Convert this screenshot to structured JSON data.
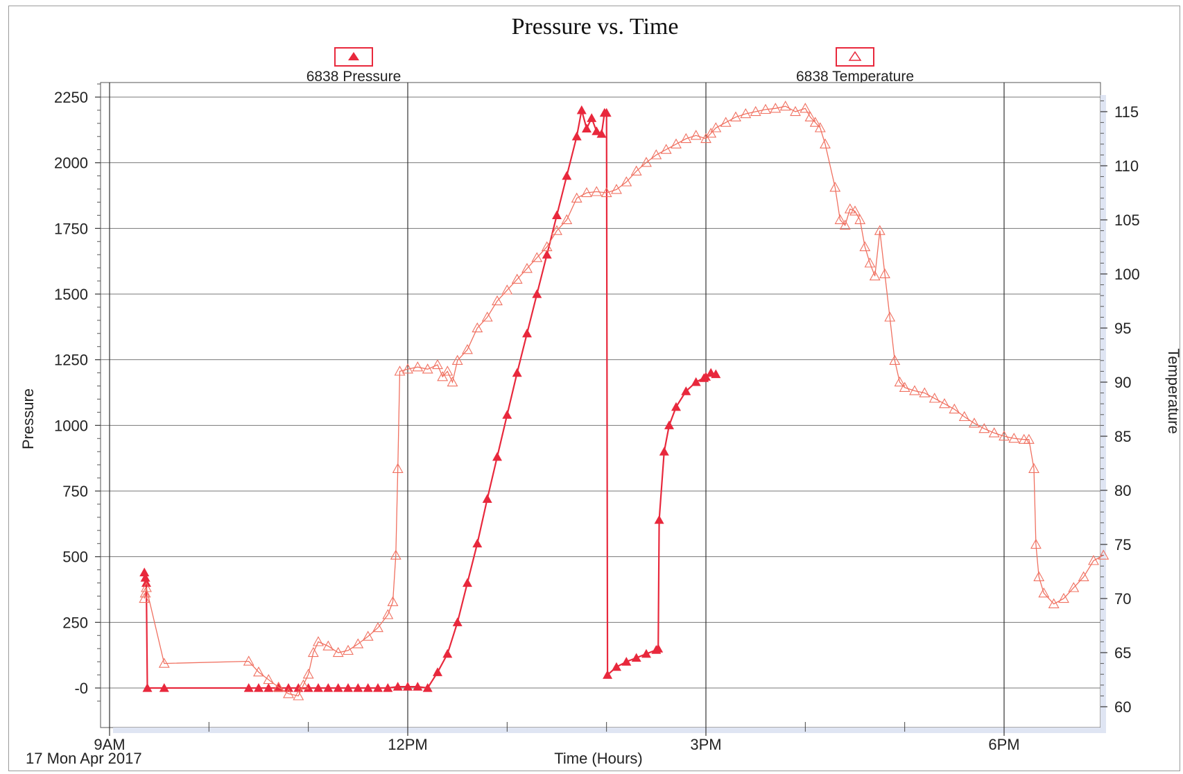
{
  "chart_data": {
    "type": "line",
    "title": "Pressure vs. Time",
    "xlabel": "Time (Hours)",
    "date_label": "17 Mon Apr 2017",
    "x_unit": "hours of day",
    "xlim": [
      9.0,
      19.0
    ],
    "x_tick_labels": [
      {
        "x": 9,
        "label": "9AM"
      },
      {
        "x": 12,
        "label": "12PM"
      },
      {
        "x": 15,
        "label": "3PM"
      },
      {
        "x": 18,
        "label": "6PM"
      }
    ],
    "x_minor_ticks": [
      10,
      11,
      13,
      14,
      16,
      17
    ],
    "grid": true,
    "legend_position": "top",
    "left_axis": {
      "label": "Pressure",
      "ylim": [
        -100,
        2300
      ],
      "ticks": [
        0,
        250,
        500,
        750,
        1000,
        1250,
        1500,
        1750,
        2000,
        2250
      ],
      "tick_labels": [
        "-0",
        "250",
        "500",
        "750",
        "1000",
        "1250",
        "1500",
        "1750",
        "2000",
        "2250"
      ]
    },
    "right_axis": {
      "label": "Temperature",
      "ylim": [
        59,
        116
      ],
      "ticks": [
        60,
        65,
        70,
        75,
        80,
        85,
        90,
        95,
        100,
        105,
        110,
        115
      ],
      "tick_labels": [
        "60",
        "65",
        "70",
        "75",
        "80",
        "85",
        "90",
        "95",
        "100",
        "105",
        "110",
        "115"
      ]
    },
    "series": [
      {
        "name": "6838 Pressure",
        "axis": "left",
        "color": "#e8283c",
        "marker": "filled-triangle",
        "points": [
          [
            9.35,
            440
          ],
          [
            9.36,
            420
          ],
          [
            9.37,
            400
          ],
          [
            9.38,
            0
          ],
          [
            9.55,
            0
          ],
          [
            10.4,
            0
          ],
          [
            10.5,
            0
          ],
          [
            10.6,
            0
          ],
          [
            10.7,
            0
          ],
          [
            10.8,
            0
          ],
          [
            10.9,
            0
          ],
          [
            11.0,
            0
          ],
          [
            11.1,
            0
          ],
          [
            11.2,
            0
          ],
          [
            11.3,
            0
          ],
          [
            11.4,
            0
          ],
          [
            11.5,
            0
          ],
          [
            11.6,
            0
          ],
          [
            11.7,
            0
          ],
          [
            11.8,
            0
          ],
          [
            11.9,
            5
          ],
          [
            12.0,
            5
          ],
          [
            12.1,
            5
          ],
          [
            12.2,
            0
          ],
          [
            12.3,
            60
          ],
          [
            12.4,
            130
          ],
          [
            12.5,
            250
          ],
          [
            12.6,
            400
          ],
          [
            12.7,
            550
          ],
          [
            12.8,
            720
          ],
          [
            12.9,
            880
          ],
          [
            13.0,
            1040
          ],
          [
            13.1,
            1200
          ],
          [
            13.2,
            1350
          ],
          [
            13.3,
            1500
          ],
          [
            13.4,
            1650
          ],
          [
            13.5,
            1800
          ],
          [
            13.6,
            1950
          ],
          [
            13.7,
            2100
          ],
          [
            13.75,
            2200
          ],
          [
            13.8,
            2130
          ],
          [
            13.85,
            2170
          ],
          [
            13.9,
            2120
          ],
          [
            13.95,
            2110
          ],
          [
            13.98,
            2190
          ],
          [
            14.0,
            2190
          ],
          [
            14.01,
            50
          ],
          [
            14.1,
            80
          ],
          [
            14.2,
            100
          ],
          [
            14.3,
            115
          ],
          [
            14.4,
            130
          ],
          [
            14.5,
            145
          ],
          [
            14.52,
            150
          ],
          [
            14.53,
            640
          ],
          [
            14.58,
            900
          ],
          [
            14.63,
            1000
          ],
          [
            14.7,
            1070
          ],
          [
            14.8,
            1130
          ],
          [
            14.9,
            1165
          ],
          [
            15.0,
            1185
          ],
          [
            14.98,
            1180
          ],
          [
            15.05,
            1200
          ],
          [
            15.1,
            1195
          ]
        ]
      },
      {
        "name": "6838 Temperature",
        "axis": "right",
        "color": "#f07060",
        "marker": "open-triangle",
        "points": [
          [
            9.35,
            70
          ],
          [
            9.36,
            70.5
          ],
          [
            9.37,
            71
          ],
          [
            9.55,
            64
          ],
          [
            10.4,
            64.2
          ],
          [
            10.5,
            63.2
          ],
          [
            10.6,
            62.5
          ],
          [
            10.7,
            61.8
          ],
          [
            10.8,
            61.2
          ],
          [
            10.9,
            61.0
          ],
          [
            10.95,
            62
          ],
          [
            11.0,
            63
          ],
          [
            11.05,
            65
          ],
          [
            11.1,
            66
          ],
          [
            11.2,
            65.6
          ],
          [
            11.3,
            65
          ],
          [
            11.4,
            65.2
          ],
          [
            11.5,
            65.8
          ],
          [
            11.6,
            66.5
          ],
          [
            11.7,
            67.3
          ],
          [
            11.8,
            68.5
          ],
          [
            11.85,
            69.7
          ],
          [
            11.88,
            74
          ],
          [
            11.9,
            82
          ],
          [
            11.92,
            91
          ],
          [
            12.0,
            91.2
          ],
          [
            12.1,
            91.4
          ],
          [
            12.2,
            91.2
          ],
          [
            12.3,
            91.6
          ],
          [
            12.35,
            90.5
          ],
          [
            12.4,
            91
          ],
          [
            12.45,
            90
          ],
          [
            12.5,
            92
          ],
          [
            12.6,
            93
          ],
          [
            12.7,
            95
          ],
          [
            12.8,
            96
          ],
          [
            12.9,
            97.5
          ],
          [
            13.0,
            98.5
          ],
          [
            13.1,
            99.5
          ],
          [
            13.2,
            100.5
          ],
          [
            13.3,
            101.5
          ],
          [
            13.4,
            102.5
          ],
          [
            13.5,
            104
          ],
          [
            13.6,
            105
          ],
          [
            13.7,
            107
          ],
          [
            13.8,
            107.5
          ],
          [
            13.9,
            107.6
          ],
          [
            14.0,
            107.5
          ],
          [
            14.1,
            107.8
          ],
          [
            14.2,
            108.5
          ],
          [
            14.3,
            109.5
          ],
          [
            14.4,
            110.3
          ],
          [
            14.5,
            111
          ],
          [
            14.6,
            111.5
          ],
          [
            14.7,
            112
          ],
          [
            14.8,
            112.5
          ],
          [
            14.9,
            112.8
          ],
          [
            15.0,
            112.5
          ],
          [
            15.05,
            113
          ],
          [
            15.1,
            113.5
          ],
          [
            15.2,
            114
          ],
          [
            15.3,
            114.5
          ],
          [
            15.4,
            114.8
          ],
          [
            15.5,
            115
          ],
          [
            15.6,
            115.2
          ],
          [
            15.7,
            115.3
          ],
          [
            15.8,
            115.5
          ],
          [
            15.9,
            115
          ],
          [
            16.0,
            115.3
          ],
          [
            16.05,
            114.5
          ],
          [
            16.1,
            114
          ],
          [
            16.15,
            113.5
          ],
          [
            16.2,
            112
          ],
          [
            16.3,
            108
          ],
          [
            16.35,
            105
          ],
          [
            16.4,
            104.5
          ],
          [
            16.45,
            106
          ],
          [
            16.5,
            105.8
          ],
          [
            16.55,
            105
          ],
          [
            16.6,
            102.5
          ],
          [
            16.65,
            101
          ],
          [
            16.7,
            99.8
          ],
          [
            16.75,
            104
          ],
          [
            16.8,
            100
          ],
          [
            16.85,
            96
          ],
          [
            16.9,
            92
          ],
          [
            16.95,
            90
          ],
          [
            17.0,
            89.5
          ],
          [
            17.1,
            89.2
          ],
          [
            17.2,
            89
          ],
          [
            17.3,
            88.5
          ],
          [
            17.4,
            88
          ],
          [
            17.5,
            87.5
          ],
          [
            17.6,
            86.8
          ],
          [
            17.7,
            86.2
          ],
          [
            17.8,
            85.7
          ],
          [
            17.9,
            85.3
          ],
          [
            18.0,
            85
          ],
          [
            18.1,
            84.8
          ],
          [
            18.2,
            84.7
          ],
          [
            18.25,
            84.7
          ],
          [
            18.3,
            82
          ],
          [
            18.32,
            75
          ],
          [
            18.35,
            72
          ],
          [
            18.4,
            70.5
          ],
          [
            18.5,
            69.5
          ],
          [
            18.6,
            70
          ],
          [
            18.7,
            71
          ],
          [
            18.8,
            72
          ],
          [
            18.9,
            73.5
          ],
          [
            19.0,
            74
          ]
        ]
      }
    ]
  }
}
